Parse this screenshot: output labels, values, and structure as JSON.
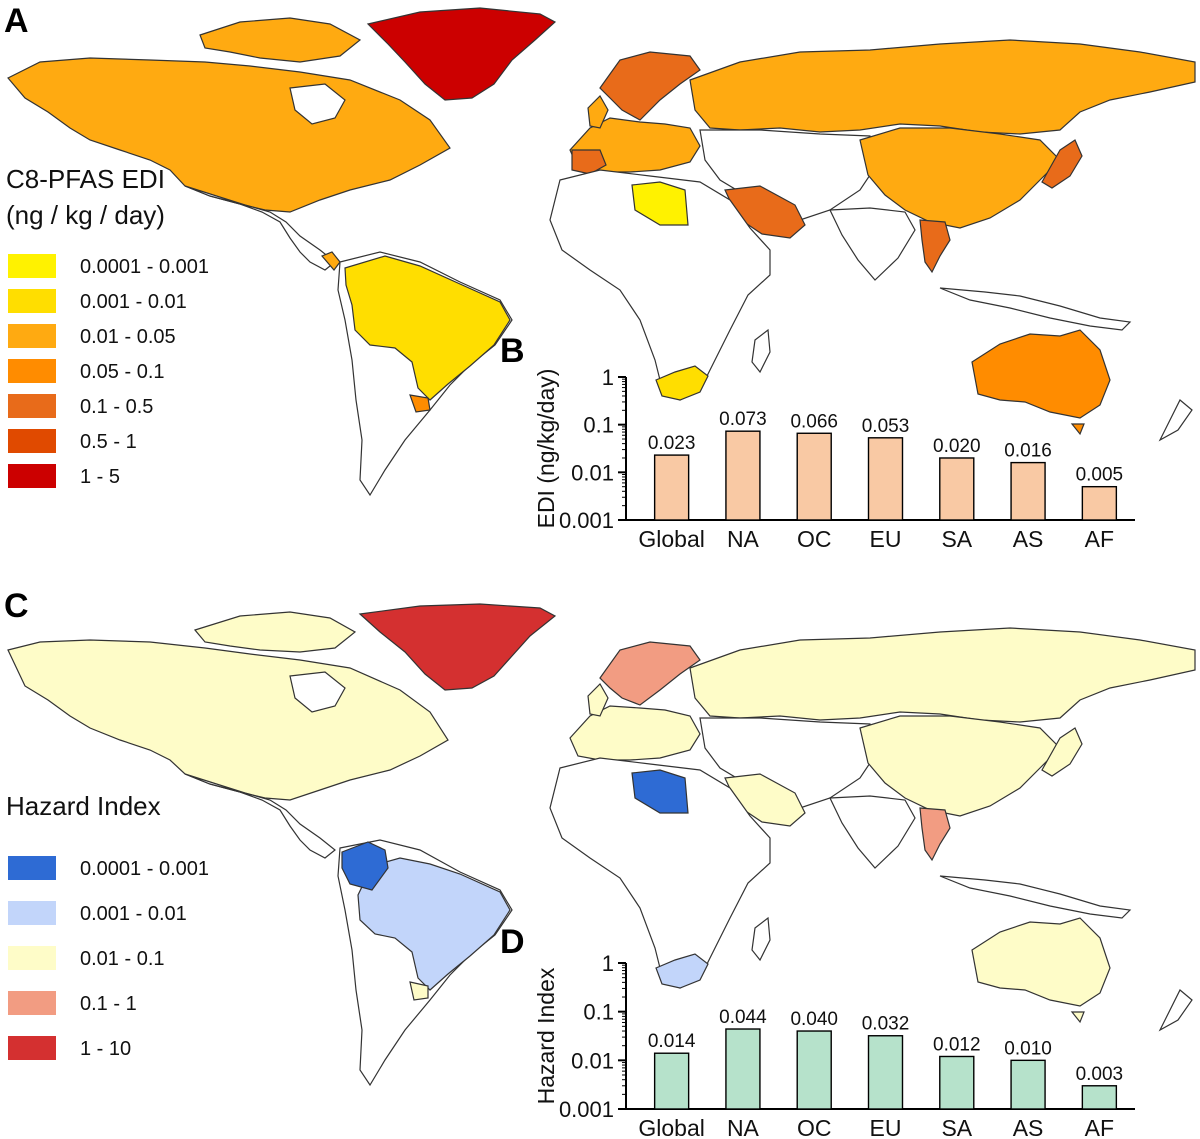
{
  "panels": {
    "a": "A",
    "b": "B",
    "c": "C",
    "d": "D"
  },
  "legend_a": {
    "title_line1": "C8-PFAS EDI",
    "title_line2": "(ng / kg / day)",
    "items": [
      {
        "label": "0.0001  -  0.001",
        "color": "#FFF200"
      },
      {
        "label": "0.001  -  0.01",
        "color": "#FFDE00"
      },
      {
        "label": "0.01  -  0.05",
        "color": "#FFAA11"
      },
      {
        "label": "0.05  -  0.1",
        "color": "#FF8C00"
      },
      {
        "label": "0.1  -  0.5",
        "color": "#E86B1A"
      },
      {
        "label": "0.5  -  1",
        "color": "#E04A00"
      },
      {
        "label": "1  -  5",
        "color": "#CC0000"
      }
    ]
  },
  "legend_c": {
    "title": "Hazard Index",
    "items": [
      {
        "label": "0.0001  -  0.001",
        "color": "#2E6BD4"
      },
      {
        "label": "0.001  -  0.01",
        "color": "#C2D5FA"
      },
      {
        "label": "0.01  -  0.1",
        "color": "#FEFCC8"
      },
      {
        "label": "0.1  -  1",
        "color": "#F29C82"
      },
      {
        "label": "1  -  10",
        "color": "#D43030"
      }
    ]
  },
  "chart_data": [
    {
      "type": "bar",
      "panel": "B",
      "categories": [
        "Global",
        "NA",
        "OC",
        "EU",
        "SA",
        "AS",
        "AF"
      ],
      "values": [
        0.023,
        0.073,
        0.066,
        0.053,
        0.02,
        0.016,
        0.005
      ],
      "value_labels": [
        "0.023",
        "0.073",
        "0.066",
        "0.053",
        "0.020",
        "0.016",
        "0.005"
      ],
      "ylabel": "EDI (ng/kg/day)",
      "yscale": "log",
      "ylim": [
        0.001,
        1
      ],
      "ytick_labels": [
        "0.001",
        "0.01",
        "0.1",
        "1"
      ],
      "bar_color": "#F9C9A4"
    },
    {
      "type": "bar",
      "panel": "D",
      "categories": [
        "Global",
        "NA",
        "OC",
        "EU",
        "SA",
        "AS",
        "AF"
      ],
      "values": [
        0.014,
        0.044,
        0.04,
        0.032,
        0.012,
        0.01,
        0.003
      ],
      "value_labels": [
        "0.014",
        "0.044",
        "0.040",
        "0.032",
        "0.012",
        "0.010",
        "0.003"
      ],
      "ylabel": "Hazard Index",
      "yscale": "log",
      "ylim": [
        0.001,
        1
      ],
      "ytick_labels": [
        "0.001",
        "0.01",
        "0.1",
        "1"
      ],
      "bar_color": "#B6E2CB"
    }
  ],
  "map_colors": {
    "edi": {
      "greenland": "#CC0000",
      "north_america": "#FFAA11",
      "colombia_brazil": "#FFDE00",
      "uruguay": "#FF8C00",
      "central_america": "#FFAA11",
      "europe": "#FFAA11",
      "nordic": "#E86B1A",
      "russia": "#FFAA11",
      "china": "#FFAA11",
      "japan": "#E86B1A",
      "saudi": "#E86B1A",
      "libya": "#FFF200",
      "thailand": "#E86B1A",
      "south_africa": "#FFDE00",
      "australia": "#FF8C00",
      "empty": "#FFFFFF"
    },
    "hi": {
      "greenland": "#D43030",
      "north_america": "#FEFCC8",
      "colombia": "#2E6BD4",
      "brazil": "#C2D5FA",
      "uruguay": "#FEFCC8",
      "europe": "#FEFCC8",
      "nordic": "#F29C82",
      "russia": "#FEFCC8",
      "china": "#FEFCC8",
      "saudi": "#FEFCC8",
      "libya": "#2E6BD4",
      "thailand": "#F29C82",
      "south_africa": "#C2D5FA",
      "australia": "#FEFCC8",
      "empty": "#FFFFFF"
    }
  }
}
